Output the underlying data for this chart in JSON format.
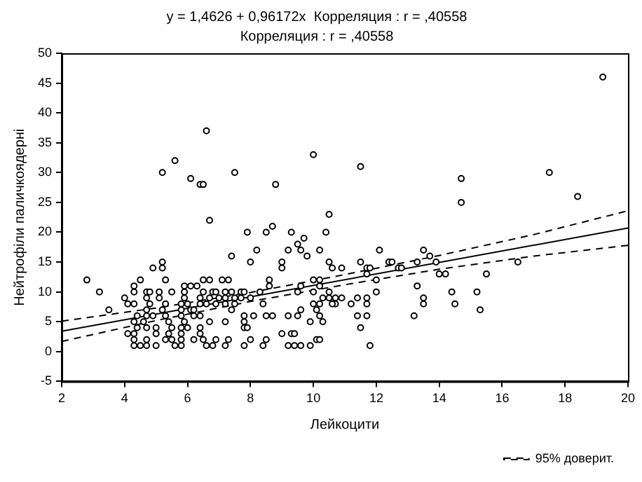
{
  "chart_data": {
    "type": "scatter",
    "title": "y = 1,4626 + 0,96172x  Корреляция : r = ,40558",
    "subtitle": "Корреляция : r = ,40558",
    "xlabel": "Лейкоцити",
    "ylabel": "Нейтрофіли паличкоядерні",
    "xlim": [
      2,
      20
    ],
    "xticks": [
      2,
      4,
      6,
      8,
      10,
      12,
      14,
      16,
      18,
      20
    ],
    "ylim": [
      -5,
      50
    ],
    "yticks": [
      -5,
      0,
      5,
      10,
      15,
      20,
      25,
      30,
      35,
      40,
      45,
      50
    ],
    "grid": false,
    "legend": "bottom right",
    "marker": "circle",
    "series": [
      {
        "type": "scatter",
        "color": "#000000",
        "x": [
          6.6,
          10.0,
          5.6,
          5.2,
          7.5,
          6.1,
          6.4,
          6.5,
          8.8,
          6.7,
          7.9,
          8.5,
          8.7,
          9.3,
          9.7,
          10.4,
          10.5,
          9.5,
          9.6,
          9.2,
          8.2,
          9.8,
          7.4,
          10.2,
          5.2,
          5.2,
          4.9,
          8.0,
          9.0,
          9.0,
          10.5,
          10.6,
          10.9,
          2.8,
          3.2,
          3.5,
          11.5,
          14.7,
          14.7,
          17.5,
          18.4,
          19.2,
          12.1,
          13.5,
          13.7,
          11.5,
          12.4,
          12.5,
          13.3,
          13.9,
          16.5,
          11.7,
          11.8,
          12.7,
          12.8,
          14.0,
          14.2,
          15.5,
          11.7,
          10.2,
          9.6,
          12.0,
          13.3,
          10.5,
          12.0,
          14.4,
          15.2,
          10.7,
          10.9,
          11.4,
          11.7,
          13.5,
          10.7,
          11.2,
          11.7,
          13.5,
          14.5,
          15.3,
          11.4,
          11.7,
          13.2,
          11.5,
          11.8,
          4.5,
          5.3,
          6.5,
          6.7,
          7.1,
          7.3,
          8.6,
          10.0,
          10.2,
          4.3,
          5.9,
          6.1,
          6.3,
          8.6,
          4.3,
          4.7,
          4.8,
          5.1,
          5.5,
          5.9,
          6.5,
          6.8,
          6.9,
          7.2,
          7.4,
          7.7,
          7.8,
          8.3,
          9.5,
          10.0,
          4.0,
          4.7,
          5.1,
          5.9,
          6.4,
          6.7,
          7.0,
          7.2,
          7.5,
          7.7,
          8.0,
          10.3,
          10.5,
          4.1,
          4.3,
          4.8,
          5.3,
          5.8,
          6.0,
          6.4,
          6.6,
          6.9,
          7.2,
          7.5,
          8.4,
          10.0,
          10.2,
          10.6,
          4.7,
          5.2,
          5.8,
          6.1,
          6.2,
          7.4,
          9.6,
          10.1,
          4.4,
          4.7,
          4.9,
          5.3,
          5.8,
          6.2,
          6.4,
          7.8,
          8.1,
          8.5,
          8.7,
          9.2,
          9.5,
          10.2,
          4.3,
          4.6,
          5.4,
          5.9,
          6.7,
          7.2,
          7.8,
          9.9,
          10.3,
          4.4,
          4.7,
          5.0,
          5.5,
          5.8,
          6.0,
          6.4,
          7.8,
          7.9,
          4.1,
          4.3,
          5.0,
          5.4,
          5.8,
          6.4,
          9.0,
          9.3,
          9.4,
          4.3,
          4.7,
          5.3,
          5.5,
          5.8,
          6.2,
          6.5,
          6.9,
          7.3,
          8.0,
          8.5,
          10.1,
          10.2,
          4.3,
          4.5,
          4.7,
          5.0,
          5.6,
          5.8,
          6.6,
          6.8,
          7.2,
          7.8,
          8.4,
          9.2,
          9.4,
          9.6,
          9.9
        ],
        "values": [
          37,
          33,
          32,
          30,
          30,
          29,
          28,
          28,
          28,
          22,
          20,
          20,
          21,
          20,
          19,
          20,
          23,
          18,
          17,
          17,
          17,
          16,
          16,
          17,
          15,
          14,
          14,
          15,
          15,
          14,
          15,
          14,
          14,
          12,
          10,
          7,
          31,
          29,
          25,
          30,
          26,
          46,
          17,
          17,
          16,
          15,
          15,
          15,
          15,
          15,
          15,
          14,
          14,
          14,
          14,
          13,
          13,
          13,
          13,
          11,
          11,
          12,
          11,
          10,
          10,
          10,
          10,
          9,
          9,
          9,
          9,
          9,
          8,
          8,
          8,
          8,
          8,
          7,
          6,
          6,
          6,
          4,
          1,
          12,
          12,
          12,
          12,
          12,
          12,
          12,
          12,
          12,
          11,
          11,
          11,
          11,
          11,
          10,
          10,
          10,
          10,
          10,
          10,
          10,
          10,
          10,
          10,
          10,
          10,
          10,
          10,
          10,
          10,
          9,
          9,
          9,
          9,
          9,
          9,
          9,
          9,
          9,
          9,
          9,
          9,
          9,
          8,
          8,
          8,
          8,
          8,
          8,
          8,
          8,
          8,
          8,
          8,
          8,
          8,
          8,
          8,
          7,
          7,
          7,
          7,
          7,
          7,
          7,
          7,
          6,
          6,
          6,
          6,
          6,
          6,
          6,
          6,
          6,
          6,
          6,
          6,
          6,
          6,
          5,
          5,
          5,
          5,
          5,
          5,
          5,
          5,
          5,
          4,
          4,
          4,
          4,
          4,
          4,
          4,
          4,
          4,
          3,
          3,
          3,
          3,
          3,
          3,
          3,
          3,
          3,
          2,
          2,
          2,
          2,
          2,
          2,
          2,
          2,
          2,
          2,
          2,
          2,
          2,
          1,
          1,
          1,
          1,
          1,
          1,
          1,
          1,
          1,
          1,
          1,
          1,
          1,
          1,
          1
        ]
      },
      {
        "type": "line",
        "color": "#000000",
        "marker": "none",
        "line_style": "solid",
        "x": [
          2,
          20
        ],
        "values": [
          3.4,
          20.7
        ]
      },
      {
        "type": "line",
        "name": "95% доверит.",
        "color": "#000000",
        "marker": "none",
        "line_style": "dashed",
        "x": [
          2,
          5,
          8,
          11,
          14,
          17,
          20
        ],
        "values": [
          5.1,
          7.3,
          9.9,
          12.9,
          16.1,
          19.6,
          23.6
        ]
      },
      {
        "type": "line",
        "color": "#000000",
        "marker": "none",
        "line_style": "dashed",
        "x": [
          2,
          5,
          8,
          11,
          14,
          17,
          20
        ],
        "values": [
          1.7,
          5.2,
          8.4,
          11.2,
          13.8,
          16.0,
          17.8
        ]
      }
    ]
  }
}
